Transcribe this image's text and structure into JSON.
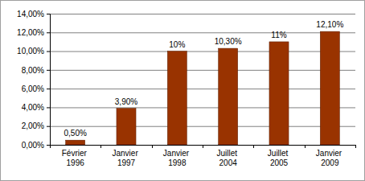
{
  "chart_data": {
    "type": "bar",
    "categories": [
      "Février 1996",
      "Janvier 1997",
      "Janvier 1998",
      "Juillet 2004",
      "Juillet 2005",
      "Janvier 2009"
    ],
    "values": [
      0.5,
      3.9,
      10,
      10.3,
      11,
      12.1
    ],
    "value_labels": [
      "0,50%",
      "3,90%",
      "10%",
      "10,30%",
      "11%",
      "12,10%"
    ],
    "data_labels": true,
    "color": "#993300",
    "ylim": [
      0,
      14
    ],
    "yticks": [
      {
        "value": 0,
        "label": "0,00%"
      },
      {
        "value": 2,
        "label": "2,00%"
      },
      {
        "value": 4,
        "label": "4,00%"
      },
      {
        "value": 6,
        "label": "6,00%"
      },
      {
        "value": 8,
        "label": "8,00%"
      },
      {
        "value": 10,
        "label": "10,00%"
      },
      {
        "value": 12,
        "label": "12,00%"
      },
      {
        "value": 14,
        "label": "14,00%"
      }
    ],
    "grid": true
  }
}
